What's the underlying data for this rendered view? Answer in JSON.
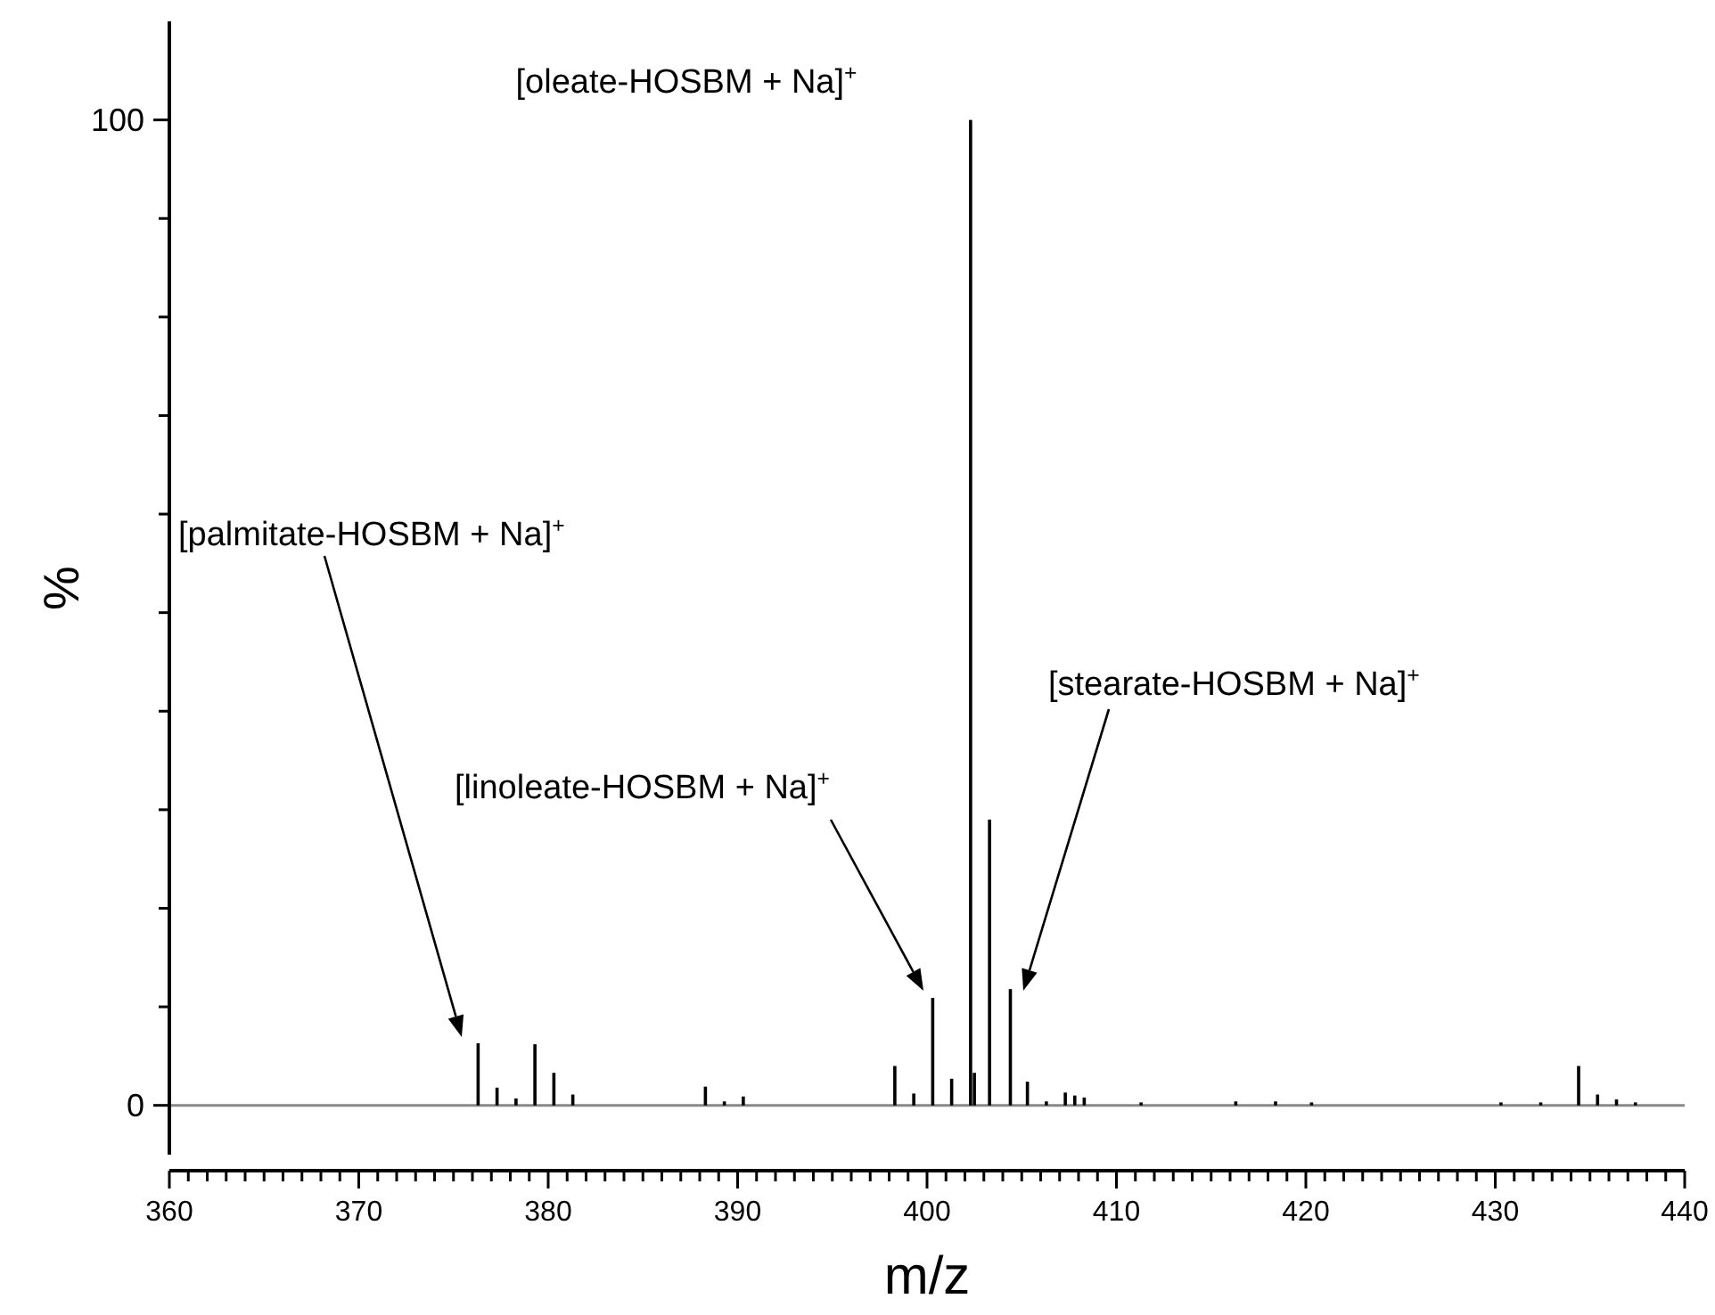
{
  "chart_data": {
    "type": "bar",
    "xlabel": "m/z",
    "ylabel": "%",
    "x": [
      376.3,
      377.3,
      378.3,
      379.3,
      380.3,
      381.3,
      388.3,
      389.3,
      390.3,
      398.3,
      399.3,
      400.3,
      401.3,
      402.3,
      402.5,
      403.3,
      404.4,
      405.3,
      406.3,
      407.3,
      407.8,
      408.3,
      411.3,
      416.3,
      418.4,
      420.3,
      430.3,
      432.4,
      434.4,
      435.4,
      436.4,
      437.4
    ],
    "values": [
      6.3,
      1.8,
      0.7,
      6.2,
      3.3,
      1.1,
      1.9,
      0.4,
      0.9,
      4.0,
      1.2,
      10.9,
      2.7,
      100,
      3.3,
      29.0,
      11.8,
      2.4,
      0.4,
      1.3,
      1.0,
      0.8,
      0.3,
      0.4,
      0.4,
      0.3,
      0.3,
      0.3,
      4.0,
      1.1,
      0.6,
      0.3
    ],
    "color": "#000000",
    "xlim": [
      360,
      440
    ],
    "xticks": [
      360,
      {
        "value": 361,
        "label": null
      },
      {
        "value": 362,
        "label": null
      },
      {
        "value": 363,
        "label": null
      },
      {
        "value": 364,
        "label": null
      },
      {
        "value": 365,
        "label": null
      },
      {
        "value": 366,
        "label": null
      },
      {
        "value": 367,
        "label": null
      },
      {
        "value": 368,
        "label": null
      },
      {
        "value": 369,
        "label": null
      },
      370,
      {
        "value": 371,
        "label": null
      },
      {
        "value": 372,
        "label": null
      },
      {
        "value": 373,
        "label": null
      },
      {
        "value": 374,
        "label": null
      },
      {
        "value": 375,
        "label": null
      },
      {
        "value": 376,
        "label": null
      },
      {
        "value": 377,
        "label": null
      },
      {
        "value": 378,
        "label": null
      },
      {
        "value": 379,
        "label": null
      },
      380,
      {
        "value": 381,
        "label": null
      },
      {
        "value": 382,
        "label": null
      },
      {
        "value": 383,
        "label": null
      },
      {
        "value": 384,
        "label": null
      },
      {
        "value": 385,
        "label": null
      },
      {
        "value": 386,
        "label": null
      },
      {
        "value": 387,
        "label": null
      },
      {
        "value": 388,
        "label": null
      },
      {
        "value": 389,
        "label": null
      },
      390,
      {
        "value": 391,
        "label": null
      },
      {
        "value": 392,
        "label": null
      },
      {
        "value": 393,
        "label": null
      },
      {
        "value": 394,
        "label": null
      },
      {
        "value": 395,
        "label": null
      },
      {
        "value": 396,
        "label": null
      },
      {
        "value": 397,
        "label": null
      },
      {
        "value": 398,
        "label": null
      },
      {
        "value": 399,
        "label": null
      },
      400,
      {
        "value": 401,
        "label": null
      },
      {
        "value": 402,
        "label": null
      },
      {
        "value": 403,
        "label": null
      },
      {
        "value": 404,
        "label": null
      },
      {
        "value": 405,
        "label": null
      },
      {
        "value": 406,
        "label": null
      },
      {
        "value": 407,
        "label": null
      },
      {
        "value": 408,
        "label": null
      },
      {
        "value": 409,
        "label": null
      },
      410,
      {
        "value": 411,
        "label": null
      },
      {
        "value": 412,
        "label": null
      },
      {
        "value": 413,
        "label": null
      },
      {
        "value": 414,
        "label": null
      },
      {
        "value": 415,
        "label": null
      },
      {
        "value": 416,
        "label": null
      },
      {
        "value": 417,
        "label": null
      },
      {
        "value": 418,
        "label": null
      },
      {
        "value": 419,
        "label": null
      },
      420,
      {
        "value": 421,
        "label": null
      },
      {
        "value": 422,
        "label": null
      },
      {
        "value": 423,
        "label": null
      },
      {
        "value": 424,
        "label": null
      },
      {
        "value": 425,
        "label": null
      },
      {
        "value": 426,
        "label": null
      },
      {
        "value": 427,
        "label": null
      },
      {
        "value": 428,
        "label": null
      },
      {
        "value": 429,
        "label": null
      },
      430,
      {
        "value": 431,
        "label": null
      },
      {
        "value": 432,
        "label": null
      },
      {
        "value": 433,
        "label": null
      },
      {
        "value": 434,
        "label": null
      },
      {
        "value": 435,
        "label": null
      },
      {
        "value": 436,
        "label": null
      },
      {
        "value": 437,
        "label": null
      },
      {
        "value": 438,
        "label": null
      },
      {
        "value": 439,
        "label": null
      },
      440
    ],
    "ylim": [
      -5,
      110
    ],
    "yticks": [
      0,
      {
        "value": 10,
        "label": null
      },
      {
        "value": 20,
        "label": null
      },
      {
        "value": 30,
        "label": null
      },
      {
        "value": 40,
        "label": null
      },
      {
        "value": 50,
        "label": null
      },
      {
        "value": 60,
        "label": null
      },
      {
        "value": 70,
        "label": null
      },
      {
        "value": 80,
        "label": null
      },
      {
        "value": 90,
        "label": null
      },
      100
    ],
    "ref_lines": [
      {
        "axis": "y",
        "value": 0,
        "color": "#888888"
      }
    ],
    "annotations": [
      "[palmitate-HOSBM + Na]$^{+}$",
      "[linoleate-HOSBM + Na]$^{+}$",
      "[oleate-HOSBM + Na]$^{+}$",
      "[stearate-HOSBM + Na]$^{+}$"
    ]
  }
}
